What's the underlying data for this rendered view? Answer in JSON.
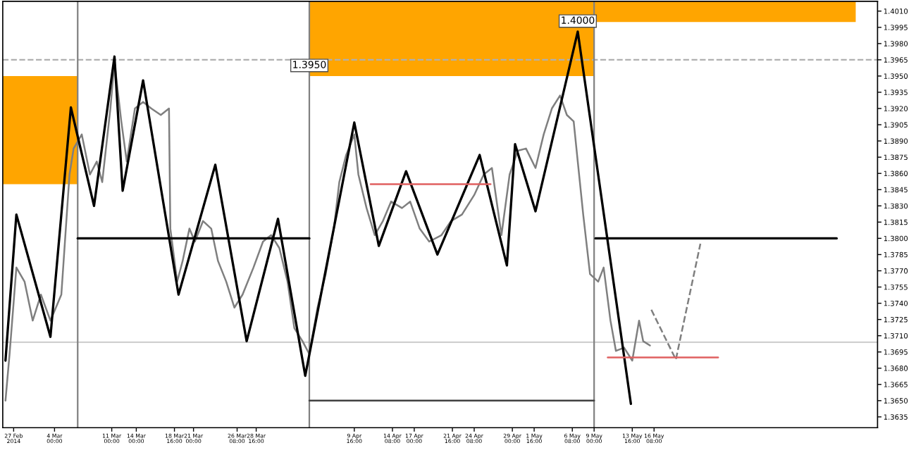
{
  "chart_data": {
    "type": "line",
    "xlim": [
      "2014-02-25T16:00",
      "2014-06-12T16:00"
    ],
    "ylim": [
      1.3625,
      1.4019
    ],
    "legend": false,
    "grid": false,
    "marker": "none",
    "xticks": [
      {
        "value": "2014-02-27T00:00",
        "label": "27 Feb 2014"
      },
      {
        "value": "2014-03-04T00:00",
        "label": "4 Mar 00:00"
      },
      {
        "value": "2014-03-11T00:00",
        "label": "11 Mar 00:00"
      },
      {
        "value": "2014-03-14T00:00",
        "label": "14 Mar 00:00"
      },
      {
        "value": "2014-03-18T16:00",
        "label": "18 Mar 16:00"
      },
      {
        "value": "2014-03-21T00:00",
        "label": "21 Mar 00:00"
      },
      {
        "value": "2014-03-26T08:00",
        "label": "26 Mar 08:00"
      },
      {
        "value": "2014-03-28T16:00",
        "label": "28 Mar 16:00"
      },
      {
        "value": "2014-04-09T16:00",
        "label": "9 Apr 16:00"
      },
      {
        "value": "2014-04-14T08:00",
        "label": "14 Apr 08:00"
      },
      {
        "value": "2014-04-17T00:00",
        "label": "17 Apr 00:00"
      },
      {
        "value": "2014-04-21T16:00",
        "label": "21 Apr 16:00"
      },
      {
        "value": "2014-04-24T08:00",
        "label": "24 Apr 08:00"
      },
      {
        "value": "2014-04-29T00:00",
        "label": "29 Apr 00:00"
      },
      {
        "value": "2014-05-01T16:00",
        "label": "1 May 16:00"
      },
      {
        "value": "2014-05-06T08:00",
        "label": "6 May 08:00"
      },
      {
        "value": "2014-05-09T00:00",
        "label": "9 May 00:00"
      },
      {
        "value": "2014-05-13T16:00",
        "label": "13 May 16:00"
      },
      {
        "value": "2014-05-16T08:00",
        "label": "16 May 08:00"
      }
    ],
    "yticks": [
      {
        "value": 1.3635,
        "label": "1.3635"
      },
      {
        "value": 1.365,
        "label": "1.3650"
      },
      {
        "value": 1.3665,
        "label": "1.3665"
      },
      {
        "value": 1.368,
        "label": "1.3680"
      },
      {
        "value": 1.3695,
        "label": "1.3695"
      },
      {
        "value": 1.371,
        "label": "1.3710"
      },
      {
        "value": 1.3725,
        "label": "1.3725"
      },
      {
        "value": 1.374,
        "label": "1.3740"
      },
      {
        "value": 1.3755,
        "label": "1.3755"
      },
      {
        "value": 1.377,
        "label": "1.3770"
      },
      {
        "value": 1.3785,
        "label": "1.3785"
      },
      {
        "value": 1.38,
        "label": "1.3800"
      },
      {
        "value": 1.3815,
        "label": "1.3815"
      },
      {
        "value": 1.383,
        "label": "1.3830"
      },
      {
        "value": 1.3845,
        "label": "1.3845"
      },
      {
        "value": 1.386,
        "label": "1.3860"
      },
      {
        "value": 1.3875,
        "label": "1.3875"
      },
      {
        "value": 1.389,
        "label": "1.3890"
      },
      {
        "value": 1.3905,
        "label": "1.3905"
      },
      {
        "value": 1.392,
        "label": "1.3920"
      },
      {
        "value": 1.3935,
        "label": "1.3935"
      },
      {
        "value": 1.395,
        "label": "1.3950"
      },
      {
        "value": 1.3965,
        "label": "1.3965"
      },
      {
        "value": 1.398,
        "label": "1.3980"
      },
      {
        "value": 1.3995,
        "label": "1.3995"
      },
      {
        "value": 1.401,
        "label": "1.4010"
      }
    ],
    "series": [
      {
        "color": "#ffa500",
        "x": [
          "2014-02-25T16:00",
          "2014-03-06T20:00"
        ],
        "values": [
          null,
          null
        ],
        "lower": [
          1.385,
          1.385
        ],
        "upper": [
          1.395,
          1.395
        ]
      },
      {
        "color": "#ffa500",
        "x": [
          "2014-04-04T04:00",
          "2014-05-09T00:00",
          "2014-05-09T00:00",
          "2014-06-10T00:00"
        ],
        "values": [
          null,
          null,
          null,
          null
        ],
        "lower": [
          1.395,
          1.395,
          1.4,
          1.4
        ],
        "upper": [
          1.4019,
          1.4019,
          1.4019,
          1.4019
        ]
      },
      {
        "color": "#7f7f7f",
        "x": [
          "2014-02-26T00:00",
          "2014-02-26T12:00",
          "2014-02-27T08:00",
          "2014-02-28T08:00",
          "2014-03-01T08:00",
          "2014-03-02T08:00",
          "2014-03-03T12:00",
          "2014-03-04T20:00",
          "2014-03-05T20:00",
          "2014-03-06T08:00",
          "2014-03-07T08:00",
          "2014-03-08T08:00",
          "2014-03-09T04:00",
          "2014-03-09T20:00",
          "2014-03-10T20:00",
          "2014-03-11T08:00",
          "2014-03-12T04:00",
          "2014-03-12T20:00",
          "2014-03-13T20:00",
          "2014-03-14T20:00",
          "2014-03-15T20:00",
          "2014-03-17T00:00",
          "2014-03-18T00:00",
          "2014-03-18T04:00",
          "2014-03-19T00:00",
          "2014-03-19T16:00",
          "2014-03-20T12:00",
          "2014-03-21T04:00",
          "2014-03-22T04:00",
          "2014-03-23T04:00",
          "2014-03-24T00:00",
          "2014-03-25T00:00",
          "2014-03-26T00:00",
          "2014-03-27T00:00",
          "2014-03-28T08:00",
          "2014-03-29T12:00",
          "2014-03-30T12:00",
          "2014-03-31T12:00",
          "2014-04-01T12:00",
          "2014-04-02T08:00",
          "2014-04-03T08:00",
          "2014-04-04T04:00",
          "2014-04-05T04:00",
          "2014-04-06T04:00",
          "2014-04-07T04:00",
          "2014-04-07T20:00",
          "2014-04-08T16:00",
          "2014-04-09T16:00",
          "2014-04-10T04:00",
          "2014-04-11T04:00",
          "2014-04-12T04:00",
          "2014-04-13T04:00",
          "2014-04-14T04:00",
          "2014-04-15T12:00",
          "2014-04-16T12:00",
          "2014-04-17T16:00",
          "2014-04-18T20:00",
          "2014-04-20T08:00",
          "2014-04-21T12:00",
          "2014-04-22T20:00",
          "2014-04-24T08:00",
          "2014-04-25T12:00",
          "2014-04-26T12:00",
          "2014-04-27T16:00",
          "2014-04-28T16:00",
          "2014-04-29T16:00",
          "2014-04-30T16:00",
          "2014-05-01T20:00",
          "2014-05-02T20:00",
          "2014-05-03T20:00",
          "2014-05-04T20:00",
          "2014-05-05T16:00",
          "2014-05-06T12:00",
          "2014-05-07T00:00",
          "2014-05-07T16:00",
          "2014-05-08T12:00",
          "2014-05-09T12:00",
          "2014-05-10T04:00",
          "2014-05-11T00:00",
          "2014-05-11T16:00",
          "2014-05-12T16:00",
          "2014-05-13T16:00",
          "2014-05-14T12:00",
          "2014-05-15T00:00",
          "2014-05-15T20:00"
        ],
        "values": [
          1.365,
          1.3693,
          1.3773,
          1.376,
          1.3724,
          1.3748,
          1.3724,
          1.3748,
          1.3859,
          1.3883,
          1.3896,
          1.3859,
          1.3871,
          1.3852,
          1.392,
          1.3963,
          1.3908,
          1.3871,
          1.392,
          1.3926,
          1.392,
          1.3914,
          1.392,
          1.3809,
          1.376,
          1.3779,
          1.3809,
          1.3797,
          1.3816,
          1.3809,
          1.3779,
          1.376,
          1.3736,
          1.3748,
          1.3773,
          1.3797,
          1.3803,
          1.3791,
          1.376,
          1.3717,
          1.3705,
          1.3693,
          1.3736,
          1.3767,
          1.3809,
          1.3852,
          1.3877,
          1.3896,
          1.3859,
          1.3828,
          1.3803,
          1.3816,
          1.3834,
          1.3828,
          1.3834,
          1.3809,
          1.3797,
          1.3803,
          1.3816,
          1.3822,
          1.384,
          1.3859,
          1.3865,
          1.3803,
          1.3859,
          1.3881,
          1.3883,
          1.3865,
          1.3896,
          1.392,
          1.3932,
          1.3914,
          1.3908,
          1.3871,
          1.3822,
          1.3767,
          1.376,
          1.3773,
          1.3724,
          1.3696,
          1.3699,
          1.3687,
          1.3724,
          1.3705,
          1.3701
        ]
      },
      {
        "color": "#000000",
        "x": [
          "2014-02-26T00:00",
          "2014-02-27T08:00",
          "2014-03-03T12:00",
          "2014-03-06T00:00",
          "2014-03-08T20:00",
          "2014-03-11T08:00",
          "2014-03-12T08:00",
          "2014-03-14T20:00",
          "2014-03-19T04:00",
          "2014-03-23T16:00",
          "2014-03-27T12:00",
          "2014-03-31T08:00",
          "2014-04-03T16:00",
          "2014-04-09T16:00",
          "2014-04-12T16:00",
          "2014-04-16T00:00",
          "2014-04-19T20:00",
          "2014-04-25T00:00",
          "2014-04-28T08:00",
          "2014-04-29T08:00",
          "2014-05-01T20:00",
          "2014-05-07T00:00",
          "2014-05-13T12:00"
        ],
        "values": [
          1.3687,
          1.3822,
          1.3709,
          1.3921,
          1.383,
          1.3968,
          1.3844,
          1.3946,
          1.3748,
          1.3868,
          1.3705,
          1.3818,
          1.3673,
          1.3907,
          1.3793,
          1.3862,
          1.3785,
          1.3877,
          1.3775,
          1.3887,
          1.3825,
          1.3991,
          1.3647
        ]
      },
      {
        "color": "#7f7f7f",
        "line_style": "dashed",
        "x": [
          "2014-05-16T00:00",
          "2014-05-19T00:00",
          "2014-05-22T00:00"
        ],
        "values": [
          1.3734,
          1.3688,
          1.3795
        ]
      },
      {
        "color": "#000000",
        "x": [
          "2014-03-06T20:00",
          "2014-04-04T04:00"
        ],
        "values": [
          1.38,
          1.38
        ]
      },
      {
        "color": "#000000",
        "x": [
          "2014-05-09T04:00",
          "2014-06-07T16:00"
        ],
        "values": [
          1.38,
          1.38
        ]
      },
      {
        "color": "#404040",
        "x": [
          "2014-04-04T04:00",
          "2014-05-09T00:00"
        ],
        "values": [
          1.365,
          1.365
        ]
      },
      {
        "color": "#e06060",
        "x": [
          "2014-04-11T16:00",
          "2014-04-26T08:00"
        ],
        "values": [
          1.385,
          1.385
        ]
      },
      {
        "color": "#e06060",
        "x": [
          "2014-05-10T16:00",
          "2014-05-24T04:00"
        ],
        "values": [
          1.369,
          1.369
        ]
      }
    ],
    "ref_lines": [
      {
        "axis": "y",
        "value": 1.3965,
        "color": "#b0b0b0",
        "line_style": "dashed"
      },
      {
        "axis": "y",
        "value": 1.3704,
        "color": "#d0d0d0"
      },
      {
        "axis": "x",
        "value": "2014-03-06T20:00",
        "color": "#808080"
      },
      {
        "axis": "x",
        "value": "2014-04-04T04:00",
        "color": "#808080"
      },
      {
        "axis": "x",
        "value": "2014-05-09T00:00",
        "color": "#808080"
      }
    ],
    "annotations": [
      {
        "text": "1.4000",
        "x": "2014-05-07T00:00",
        "y": 1.3991
      },
      {
        "text": "1.3950",
        "x": "2014-04-04T04:00",
        "y": 1.395
      }
    ]
  }
}
